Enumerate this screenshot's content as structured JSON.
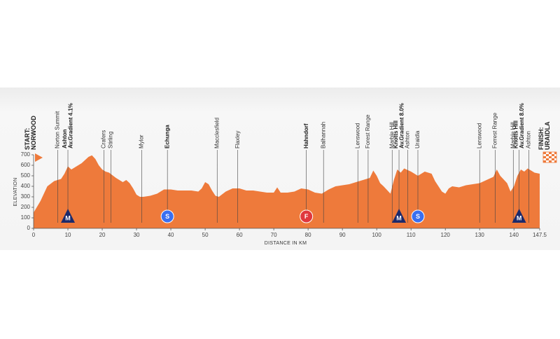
{
  "chart_data": {
    "type": "area",
    "xlabel": "DISTANCE IN KM",
    "ylabel": "ELEVATION",
    "color": "#ee7a3b",
    "xlim": [
      0,
      147.5
    ],
    "ylim": [
      0,
      700
    ],
    "xticks": [
      0,
      10,
      20,
      30,
      40,
      50,
      60,
      70,
      80,
      90,
      100,
      110,
      120,
      130,
      140,
      147.5
    ],
    "yticks": [
      0,
      100,
      200,
      300,
      400,
      500,
      600,
      700
    ],
    "x": [
      0,
      2,
      4,
      6,
      8,
      9,
      10,
      11,
      12,
      14,
      16,
      17,
      18,
      19,
      20,
      21,
      22,
      24,
      26,
      27,
      28,
      29,
      30,
      31,
      32,
      34,
      36,
      38,
      40,
      42,
      44,
      46,
      48,
      49,
      50,
      51,
      52,
      53,
      54,
      56,
      58,
      60,
      62,
      64,
      66,
      68,
      70,
      71,
      72,
      74,
      76,
      78,
      80,
      82,
      84,
      86,
      88,
      90,
      92,
      94,
      96,
      98,
      99,
      100,
      101,
      102,
      104,
      105,
      106,
      107,
      108,
      110,
      112,
      114,
      116,
      117,
      118,
      119,
      120,
      121,
      122,
      124,
      126,
      128,
      130,
      132,
      134,
      135,
      136,
      138,
      139,
      140,
      141,
      142,
      143,
      144,
      145,
      146,
      147.5
    ],
    "values": [
      150,
      260,
      400,
      450,
      470,
      520,
      590,
      560,
      580,
      620,
      680,
      695,
      660,
      600,
      560,
      540,
      530,
      480,
      440,
      460,
      430,
      380,
      320,
      300,
      300,
      310,
      330,
      370,
      370,
      360,
      360,
      360,
      350,
      380,
      440,
      420,
      360,
      310,
      300,
      350,
      380,
      380,
      360,
      360,
      350,
      340,
      340,
      390,
      340,
      340,
      350,
      380,
      370,
      340,
      330,
      370,
      400,
      410,
      420,
      440,
      460,
      480,
      550,
      500,
      430,
      400,
      330,
      460,
      560,
      530,
      570,
      540,
      500,
      540,
      520,
      450,
      400,
      350,
      330,
      380,
      400,
      390,
      410,
      420,
      430,
      460,
      490,
      560,
      500,
      430,
      350,
      400,
      500,
      560,
      540,
      570,
      550,
      530,
      520
    ],
    "places": [
      {
        "km": 0,
        "lines": [
          "START:",
          "NORWOOD"
        ],
        "bold": true
      },
      {
        "km": 7,
        "lines": [
          "Norton Summit"
        ],
        "bold": false
      },
      {
        "km": 10,
        "lines": [
          "Ashton",
          "Av.Gradient 4.1%"
        ],
        "bold": true
      },
      {
        "km": 20.5,
        "lines": [
          "Crafers"
        ],
        "bold": false
      },
      {
        "km": 22.5,
        "lines": [
          "Stirling"
        ],
        "bold": false
      },
      {
        "km": 31.5,
        "lines": [
          "Mylor"
        ],
        "bold": false
      },
      {
        "km": 39,
        "lines": [
          "Echunga"
        ],
        "bold": true
      },
      {
        "km": 53.5,
        "lines": [
          "Macclesfield"
        ],
        "bold": false
      },
      {
        "km": 59.5,
        "lines": [
          "Flaxley"
        ],
        "bold": false
      },
      {
        "km": 79.5,
        "lines": [
          "Hahndorf"
        ],
        "bold": true
      },
      {
        "km": 84.5,
        "lines": [
          "Balhannah"
        ],
        "bold": false
      },
      {
        "km": 94.5,
        "lines": [
          "Lenswood"
        ],
        "bold": false
      },
      {
        "km": 97.5,
        "lines": [
          "Forest Range"
        ],
        "bold": false
      },
      {
        "km": 104.5,
        "lines": [
          "Marble Hill"
        ],
        "bold": false
      },
      {
        "km": 106.5,
        "lines": [
          "Knotts Hill",
          "Av.Gradient 8.0%"
        ],
        "bold": true
      },
      {
        "km": 109,
        "lines": [
          "Ashton"
        ],
        "bold": false
      },
      {
        "km": 112,
        "lines": [
          "Uraidla"
        ],
        "bold": false
      },
      {
        "km": 130,
        "lines": [
          "Lenswood"
        ],
        "bold": false
      },
      {
        "km": 134.5,
        "lines": [
          "Forrest Range"
        ],
        "bold": false
      },
      {
        "km": 139.8,
        "lines": [
          "Marble Hill"
        ],
        "bold": false
      },
      {
        "km": 141.5,
        "lines": [
          "Knotts Hill",
          "Av.Gradient 8.0%"
        ],
        "bold": true
      },
      {
        "km": 144.3,
        "lines": [
          "Ashton"
        ],
        "bold": false
      },
      {
        "km": 147.5,
        "lines": [
          "FINISH:",
          "URAIDLA"
        ],
        "bold": true
      }
    ],
    "markers": [
      {
        "km": 10,
        "label": "M",
        "kind": "mountain",
        "color": "#1c2a6b"
      },
      {
        "km": 39,
        "label": "S",
        "kind": "sprint",
        "color": "#3b6ff0"
      },
      {
        "km": 79.5,
        "label": "F",
        "kind": "feed",
        "color": "#e0383e"
      },
      {
        "km": 106.5,
        "label": "M",
        "kind": "mountain",
        "color": "#1c2a6b"
      },
      {
        "km": 112,
        "label": "S",
        "kind": "sprint",
        "color": "#3b6ff0"
      },
      {
        "km": 141.5,
        "label": "M",
        "kind": "mountain",
        "color": "#1c2a6b"
      }
    ]
  }
}
